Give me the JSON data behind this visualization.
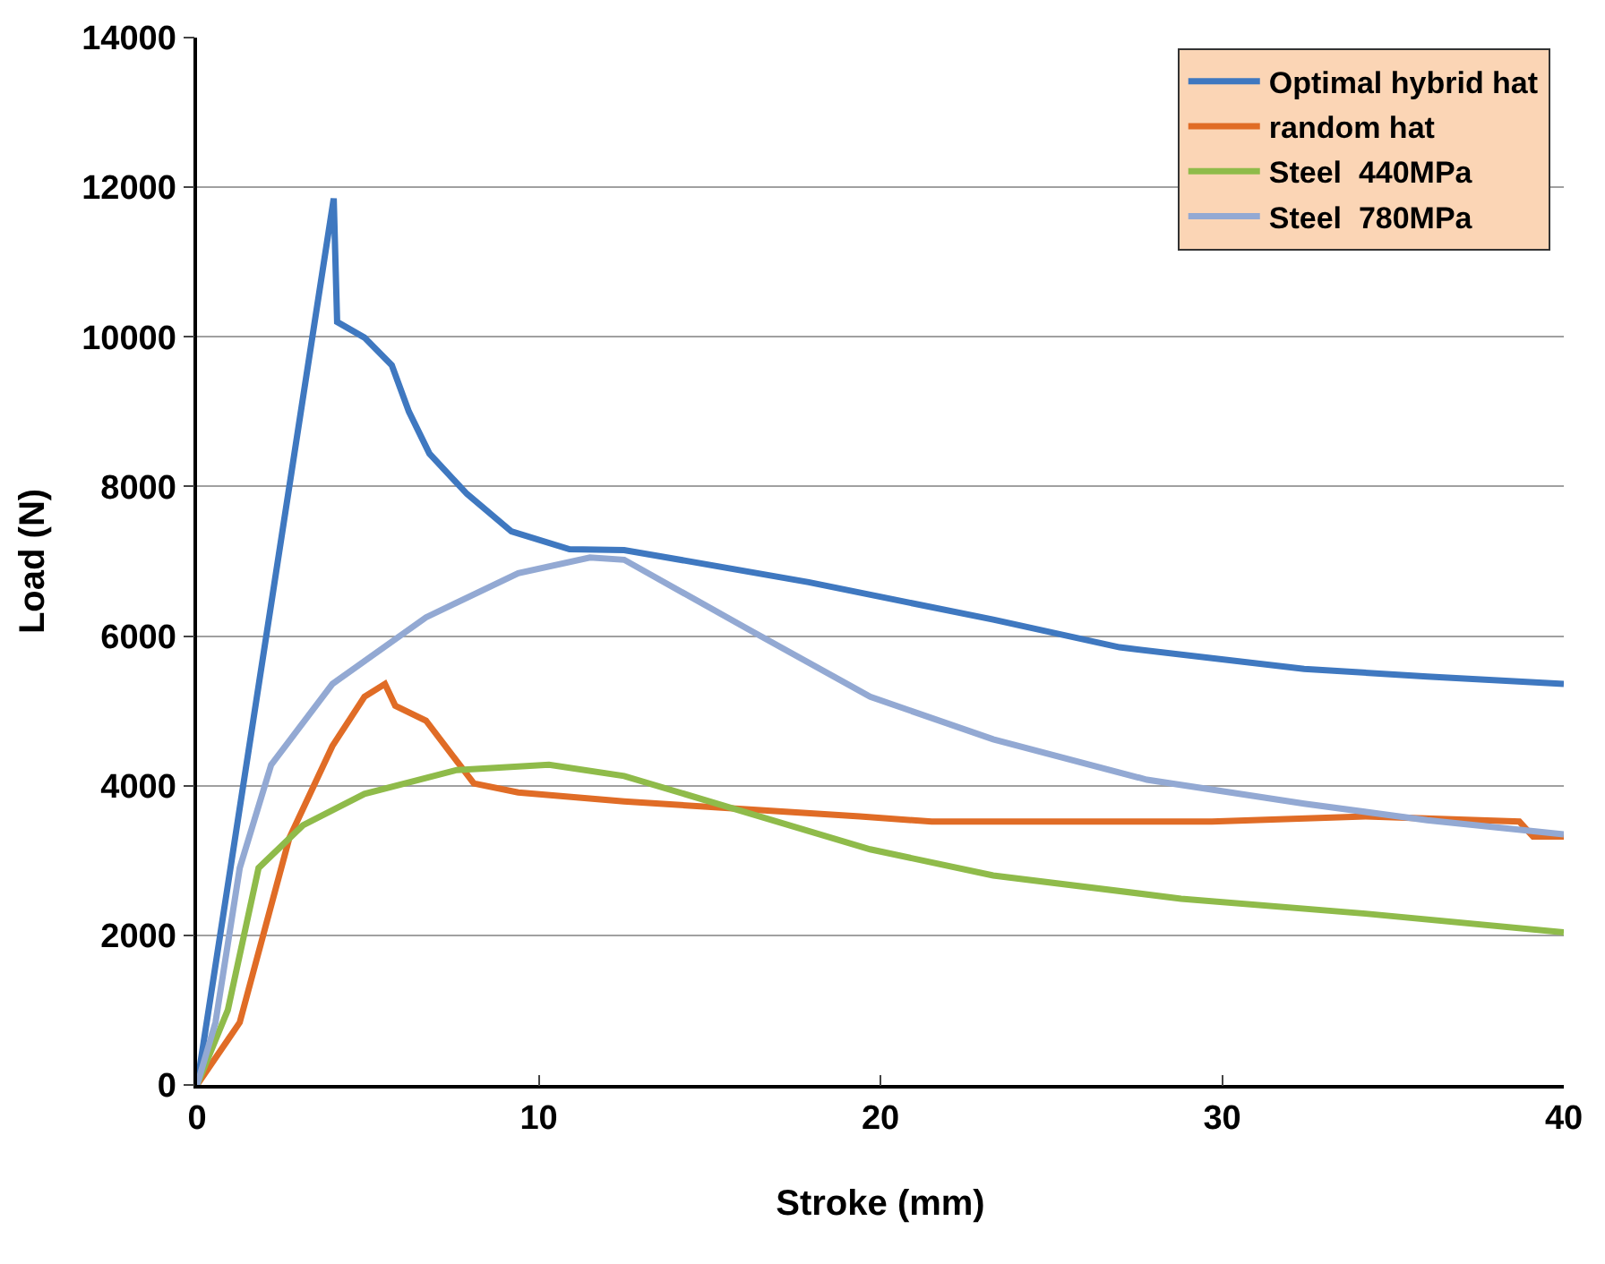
{
  "chart_data": {
    "type": "line",
    "xlabel": "Stroke (mm)",
    "ylabel": "Load (N)",
    "xlim": [
      0,
      40
    ],
    "xticks": [
      0,
      10,
      20,
      30,
      40
    ],
    "ylim": [
      0,
      14000
    ],
    "yticks": [
      0,
      2000,
      4000,
      6000,
      8000,
      10000,
      12000,
      14000
    ],
    "grid": "y",
    "legend": "top right",
    "marker": "none",
    "line_style": "solid",
    "series": [
      {
        "name": "Optimal hybrid hat",
        "color": "#3f78c0",
        "x": [
          0,
          4.0,
          4.1,
          4.9,
          5.7,
          6.2,
          6.8,
          7.9,
          9.2,
          10.9,
          12.5,
          17.9,
          23.3,
          27.0,
          32.4,
          36.0,
          40
        ],
        "values": [
          0,
          11850,
          10200,
          9990,
          9620,
          9000,
          8440,
          7900,
          7400,
          7160,
          7150,
          6720,
          6220,
          5850,
          5560,
          5460,
          5360
        ]
      },
      {
        "name": "random hat",
        "color": "#e06c26",
        "x": [
          0,
          1.25,
          2.7,
          3.96,
          4.9,
          5.5,
          5.8,
          6.7,
          7.4,
          8.1,
          9.4,
          12.5,
          19.4,
          21.5,
          29.7,
          34.2,
          38.7,
          39.1,
          40
        ],
        "values": [
          0,
          836,
          3300,
          4530,
          5190,
          5360,
          5070,
          4870,
          4450,
          4030,
          3910,
          3790,
          3590,
          3520,
          3520,
          3590,
          3520,
          3320,
          3320
        ]
      },
      {
        "name": "Steel  440MPa",
        "color": "#8fbb4a",
        "x": [
          0,
          0.9,
          1.8,
          3.1,
          4.9,
          7.6,
          10.3,
          12.5,
          16.1,
          19.7,
          23.3,
          28.8,
          34.2,
          40
        ],
        "values": [
          0,
          1000,
          2900,
          3470,
          3890,
          4210,
          4280,
          4130,
          3640,
          3150,
          2800,
          2490,
          2290,
          2040
        ]
      },
      {
        "name": "Steel  780MPa",
        "color": "#93a9d3",
        "x": [
          0,
          0.54,
          1.25,
          2.17,
          3.96,
          6.7,
          9.4,
          11.5,
          12.5,
          16.1,
          19.7,
          23.3,
          27.8,
          32.4,
          36.0,
          40
        ],
        "values": [
          0,
          836,
          2900,
          4280,
          5360,
          6250,
          6840,
          7050,
          7020,
          6100,
          5190,
          4620,
          4080,
          3760,
          3540,
          3350
        ]
      }
    ]
  }
}
